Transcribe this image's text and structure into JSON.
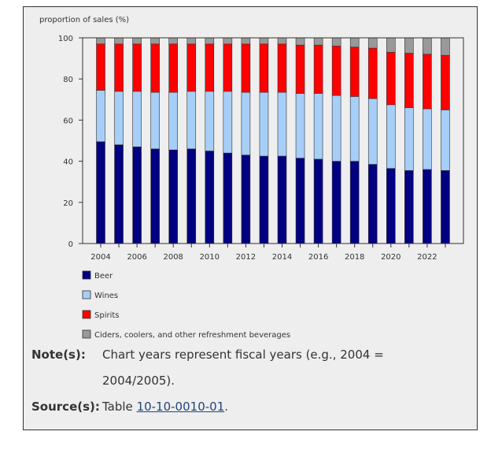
{
  "chart_data": {
    "type": "bar",
    "stacked": true,
    "ylabel": "proportion of sales (%)",
    "ylim": [
      0,
      100
    ],
    "yticks": [
      0,
      20,
      40,
      60,
      80,
      100
    ],
    "categories": [
      "2004",
      "2005",
      "2006",
      "2007",
      "2008",
      "2009",
      "2010",
      "2011",
      "2012",
      "2013",
      "2014",
      "2015",
      "2016",
      "2017",
      "2018",
      "2019",
      "2020",
      "2021",
      "2022",
      "2023"
    ],
    "xtick_labels": [
      "2004",
      "2006",
      "2008",
      "2010",
      "2012",
      "2014",
      "2016",
      "2018",
      "2020",
      "2022"
    ],
    "series": [
      {
        "name": "Beer",
        "color": "#000080",
        "values": [
          49.5,
          48,
          47,
          46,
          45.5,
          46,
          45,
          44,
          43,
          42.5,
          42.5,
          41.5,
          41,
          40,
          40,
          38.5,
          36.5,
          35.5,
          36,
          35.5
        ]
      },
      {
        "name": "Wines",
        "color": "#a6cef7",
        "values": [
          25,
          26,
          27,
          27.5,
          28,
          28,
          29,
          30,
          30.5,
          31,
          31,
          31.5,
          32,
          32,
          31.5,
          32,
          31,
          30.5,
          29.5,
          29.5
        ]
      },
      {
        "name": "Spirits",
        "color": "#ff0000",
        "values": [
          22.5,
          23,
          23,
          23.5,
          23.5,
          23,
          23,
          23,
          23.5,
          23.5,
          23.5,
          23.5,
          23.5,
          24,
          24,
          24.5,
          25.5,
          26.5,
          26.5,
          26.5
        ]
      },
      {
        "name": "Ciders, coolers, and other refreshment beverages",
        "color": "#999999",
        "values": [
          3,
          3,
          3,
          3,
          3,
          3,
          3,
          3,
          3,
          3,
          3,
          3.5,
          3.5,
          4,
          4.5,
          5,
          7,
          7.5,
          8,
          8.5
        ]
      }
    ],
    "grid": false,
    "legend_position": "bottom-left"
  },
  "notes": {
    "note_label": "Note(s):",
    "note_text": "Chart years represent fiscal years (e.g., 2004 = 2004/2005).",
    "source_label": "Source(s):",
    "source_prefix": "Table ",
    "source_link": "10-10-0010-01",
    "source_suffix": "."
  }
}
